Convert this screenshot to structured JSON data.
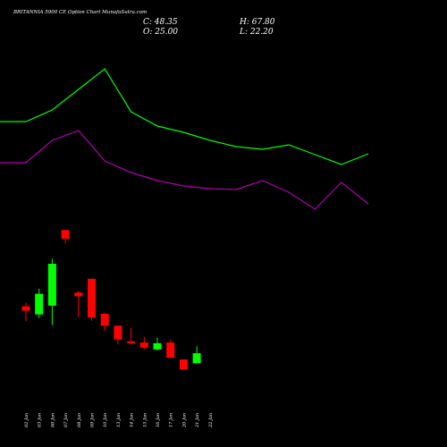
{
  "chart_data": {
    "type": "candlestick",
    "title": "BRITANNIA 5900  CE Option  Chart MunafaSutra.com",
    "ohlc_summary": {
      "close_label": "C: 48.35",
      "open_label": "O: 25.00",
      "high_label": "H: 67.80",
      "low_label": "L: 22.20"
    },
    "colors": {
      "up": "#00ff00",
      "down": "#ff0000",
      "upper_line": "#00ff00",
      "lower_line": "#b000b0",
      "background": "#000000"
    },
    "candles": [
      {
        "date": "02 Jan",
        "open": 36.0,
        "close": 32.5,
        "high": 39.0,
        "low": 24.0,
        "color": "down"
      },
      {
        "date": "03 Jan",
        "open": 29.5,
        "close": 46.0,
        "high": 50.0,
        "low": 26.5,
        "color": "up"
      },
      {
        "date": "06 Jan",
        "open": 36.5,
        "close": 70.0,
        "high": 74.0,
        "low": 21.0,
        "color": "up"
      },
      {
        "date": "07 Jan",
        "open": 97.0,
        "close": 90.0,
        "high": 97.0,
        "low": 86.0,
        "color": "down"
      },
      {
        "date": "08 Jan",
        "open": 47.0,
        "close": 44.0,
        "high": 48.5,
        "low": 27.0,
        "color": "down"
      },
      {
        "date": "09 Jan",
        "open": 58.0,
        "close": 27.0,
        "high": 58.0,
        "low": 24.5,
        "color": "down"
      },
      {
        "date": "10 Jan",
        "open": 30.0,
        "close": 20.5,
        "high": 31.0,
        "low": 16.5,
        "color": "down"
      },
      {
        "date": "13 Jan",
        "open": 20.5,
        "close": 9.5,
        "high": 20.5,
        "low": 5.5,
        "color": "down"
      },
      {
        "date": "14 Jan",
        "open": 8.0,
        "close": 6.5,
        "high": 18.5,
        "low": 6.0,
        "color": "down"
      },
      {
        "date": "15 Jan",
        "open": 7.0,
        "close": 3.0,
        "high": 11.5,
        "low": 1.5,
        "color": "down"
      },
      {
        "date": "16 Jan",
        "open": 1.5,
        "close": 6.5,
        "high": 11.0,
        "low": 0.5,
        "color": "up"
      },
      {
        "date": "17 Jan",
        "open": 7.0,
        "close": -5.0,
        "high": 9.5,
        "low": -5.5,
        "color": "down"
      },
      {
        "date": "20 Jan",
        "open": -6.5,
        "close": -14.5,
        "high": -6.5,
        "low": -14.5,
        "color": "down"
      },
      {
        "date": "21 Jan",
        "open": -9.5,
        "close": -1.5,
        "high": 4.0,
        "low": -9.5,
        "color": "up"
      }
    ],
    "upper_line": [
      136,
      136,
      123,
      100,
      77,
      125,
      141,
      148,
      157,
      164,
      167,
      162,
      173,
      184,
      172
    ],
    "lower_line": [
      182,
      182,
      157,
      146,
      180,
      193,
      202,
      208,
      211,
      212,
      202,
      215,
      234,
      204,
      228
    ],
    "xtick_labels": [
      "02 Jan",
      "03 Jan",
      "06 Jan",
      "07 Jan",
      "08 Jan",
      "09 Jan",
      "10 Jan",
      "13 Jan",
      "14 Jan",
      "15 Jan",
      "16 Jan",
      "17 Jan",
      "20 Jan",
      "21 Jan",
      "22 Jan"
    ],
    "grid": false,
    "legend": "none"
  }
}
